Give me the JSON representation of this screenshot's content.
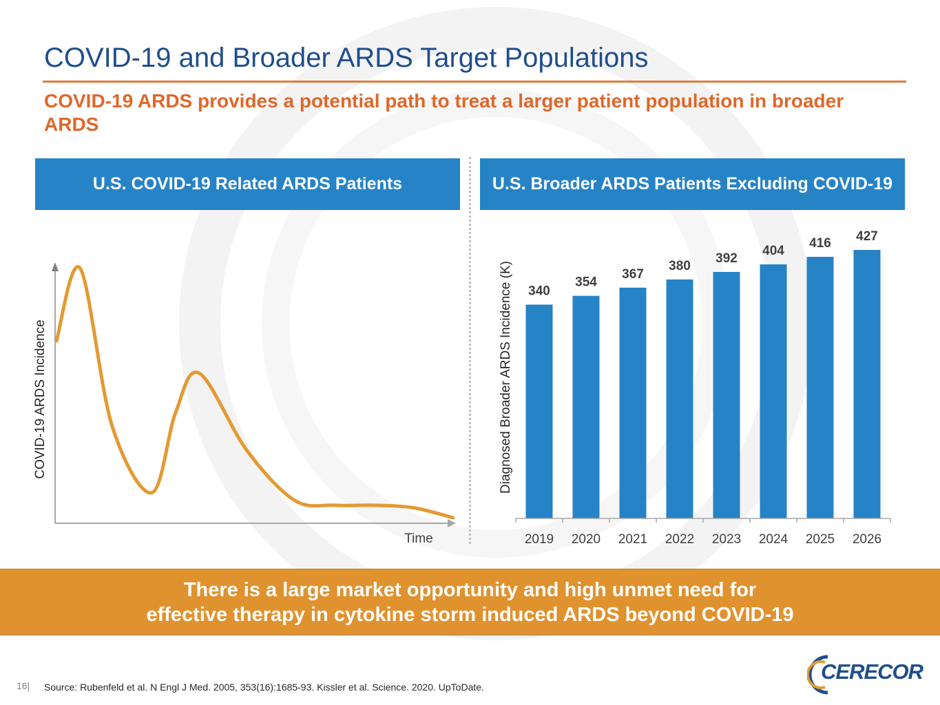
{
  "slide": {
    "title": "COVID-19 and Broader ARDS Target Populations",
    "subtitle": "COVID-19 ARDS provides a potential path to treat a larger patient population in broader ARDS",
    "left_header": "U.S. COVID-19 Related ARDS Patients",
    "right_header": "U.S. Broader ARDS Patients Excluding COVID-19",
    "banner_line1": "There is a large market opportunity and high unmet need for",
    "banner_line2": "effective therapy in cytokine storm induced ARDS beyond COVID-19",
    "page_number": "16|",
    "source": "Source: Rubenfeld et al. N Engl J Med. 2005, 353(16):1685-93. Kissler et al. Science. 2020. UpToDate.",
    "logo_text": "CERECOR"
  },
  "colors": {
    "title": "#1f4e8c",
    "accent_orange": "#e0672a",
    "header_blue": "#2683c6",
    "bar_blue": "#2683c6",
    "curve_orange": "#e39a33",
    "banner": "#e0922e"
  },
  "chart_data": [
    {
      "type": "line",
      "title": "U.S. COVID-19 Related ARDS Patients",
      "xlabel": "Time",
      "ylabel": "COVID-19 ARDS Incidence",
      "axis_ticks": false,
      "shape": "illustrative unlabeled curve: initial large peak, trough, smaller second peak, then long low tail",
      "x": [
        0,
        0.06,
        0.14,
        0.24,
        0.3,
        0.36,
        0.48,
        0.6,
        0.7,
        0.8,
        0.9,
        1.0
      ],
      "y": [
        0.71,
        1.0,
        0.37,
        0.1,
        0.42,
        0.58,
        0.27,
        0.07,
        0.05,
        0.05,
        0.04,
        0.0
      ]
    },
    {
      "type": "bar",
      "title": "U.S. Broader ARDS Patients Excluding COVID-19",
      "xlabel": "",
      "ylabel": "Diagnosed Broader ARDS Incidence (K)",
      "categories": [
        "2019",
        "2020",
        "2021",
        "2022",
        "2023",
        "2024",
        "2025",
        "2026"
      ],
      "values": [
        340,
        354,
        367,
        380,
        392,
        404,
        416,
        427
      ],
      "value_labels": [
        "340",
        "354",
        "367",
        "380",
        "392",
        "404",
        "416",
        "427"
      ],
      "ylim": [
        0,
        427
      ],
      "grid": false,
      "legend": "none"
    }
  ]
}
